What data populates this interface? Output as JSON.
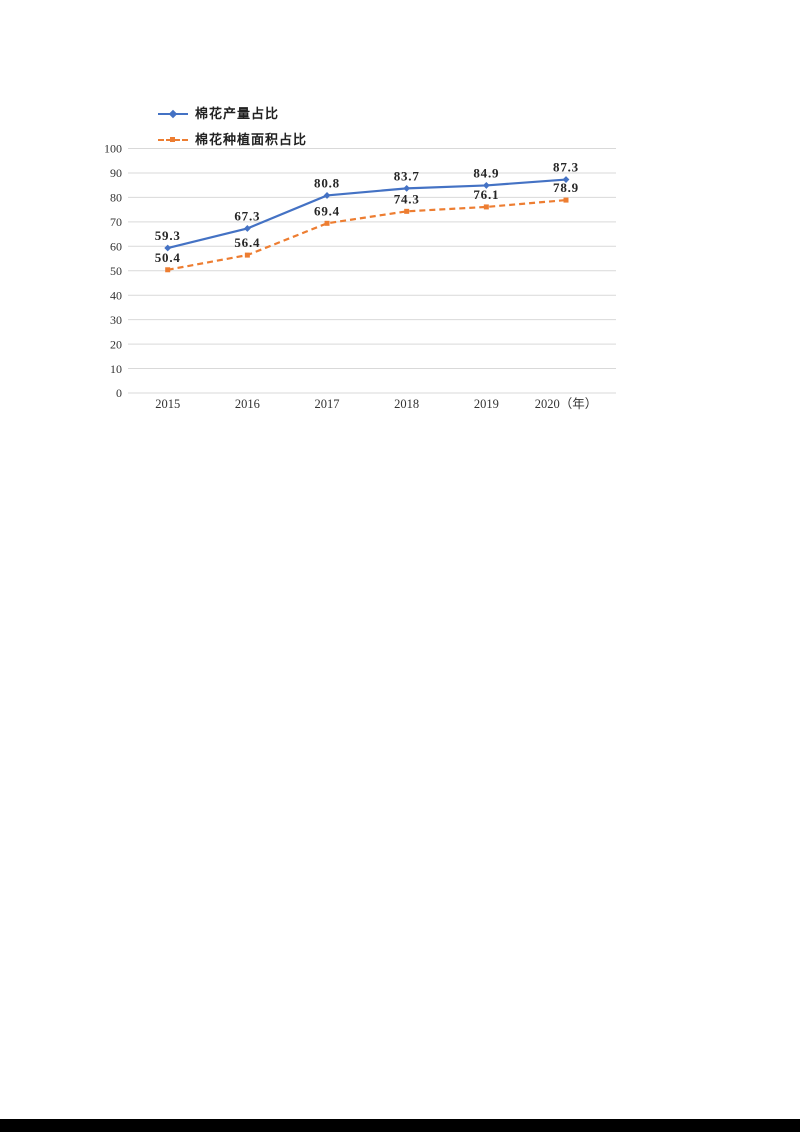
{
  "page": {
    "background": "#ffffff",
    "bottom_bar_color": "#000000"
  },
  "chart_data": {
    "type": "line",
    "title": "",
    "xlabel": "",
    "ylabel": "",
    "categories": [
      "2015",
      "2016",
      "2017",
      "2018",
      "2019",
      "2020（年）"
    ],
    "series": [
      {
        "name": "棉花产量占比",
        "color": "#4472c4",
        "line_style": "solid",
        "marker": "diamond",
        "values": [
          59.3,
          67.3,
          80.8,
          83.7,
          84.9,
          87.3
        ]
      },
      {
        "name": "棉花种植面积占比",
        "color": "#ed7d31",
        "line_style": "dashed",
        "marker": "square",
        "values": [
          50.4,
          56.4,
          69.4,
          74.3,
          76.1,
          78.9
        ]
      }
    ],
    "ylim": [
      0,
      100
    ],
    "ytick_step": 10,
    "grid": true,
    "gridline_color": "#d9d9d9",
    "label_color": "#262626",
    "legend_position": "top-left",
    "data_labels_shown": true
  }
}
